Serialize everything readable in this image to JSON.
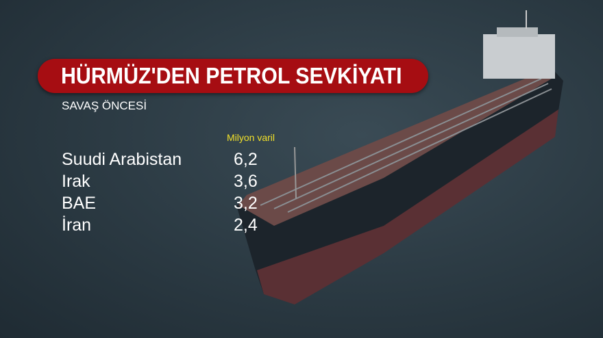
{
  "title": "HÜRMÜZ'DEN PETROL SEVKİYATI",
  "subtitle": "SAVAŞ ÖNCESİ",
  "colors": {
    "title_bar": "#a60d12",
    "unit_text": "#f2e12a",
    "text": "#ffffff"
  },
  "chart_data": {
    "type": "table",
    "title": "HÜRMÜZ'DEN PETROL SEVKİYATI",
    "subtitle": "SAVAŞ ÖNCESİ",
    "value_header": "Milyon varil",
    "rows": [
      {
        "label": "Suudi Arabistan",
        "value": "6,2"
      },
      {
        "label": "Irak",
        "value": "3,6"
      },
      {
        "label": "BAE",
        "value": "3,2"
      },
      {
        "label": "İran",
        "value": "2,4"
      }
    ]
  }
}
